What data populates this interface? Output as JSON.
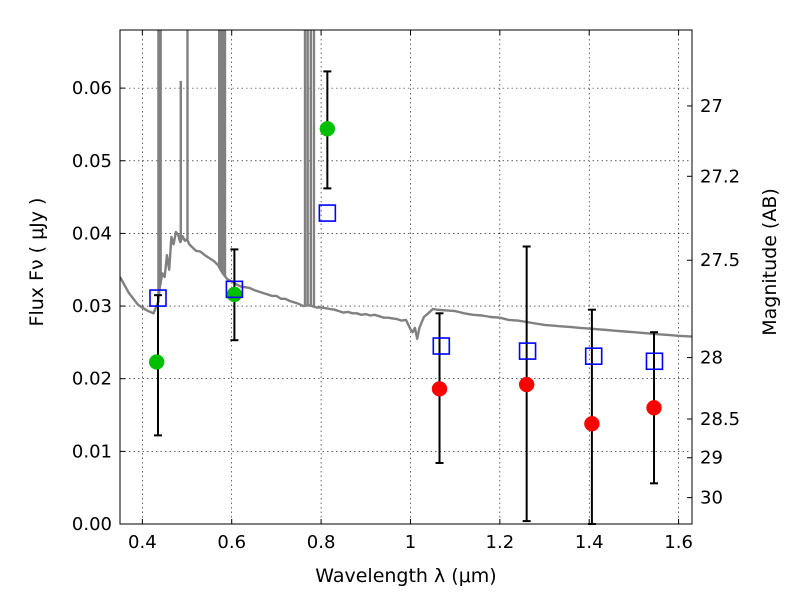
{
  "chart_data": {
    "type": "scatter",
    "title": "",
    "xlabel": "Wavelength  λ (μm)",
    "ylabel": "Flux  Fν  ( μJy )",
    "y2label": "Magnitude (AB)",
    "xlim": [
      0.35,
      1.63
    ],
    "ylim": [
      0.0,
      0.068
    ],
    "xticks": [
      "0.4",
      "0.6",
      "0.8",
      "1",
      "1.2",
      "1.4",
      "1.6"
    ],
    "xtick_values": [
      0.4,
      0.6,
      0.8,
      1.0,
      1.2,
      1.4,
      1.6
    ],
    "yticks": [
      "0.00",
      "0.01",
      "0.02",
      "0.03",
      "0.04",
      "0.05",
      "0.06"
    ],
    "ytick_values": [
      0.0,
      0.01,
      0.02,
      0.03,
      0.04,
      0.05,
      0.06
    ],
    "y2ticks": [
      "27",
      "27.2",
      "27.5",
      "28",
      "28.5",
      "29",
      "30"
    ],
    "y2tick_values": [
      27.0,
      27.2,
      27.5,
      28.0,
      28.5,
      29.0,
      30.0
    ],
    "grid": true,
    "series": [
      {
        "marker": "circle",
        "color": "#00bf00",
        "points": [
          {
            "x": 0.432,
            "y": 0.0223
          },
          {
            "x": 0.606,
            "y": 0.0316
          },
          {
            "x": 0.814,
            "y": 0.0544
          }
        ]
      },
      {
        "marker": "circle",
        "color": "#ff0000",
        "points": [
          {
            "x": 1.065,
            "y": 0.0186
          },
          {
            "x": 1.26,
            "y": 0.0192
          },
          {
            "x": 1.406,
            "y": 0.0138
          },
          {
            "x": 1.545,
            "y": 0.016
          }
        ]
      },
      {
        "marker": "open-square",
        "color": "#0000ff",
        "points": [
          {
            "x": 0.435,
            "y": 0.0311
          },
          {
            "x": 0.606,
            "y": 0.0323
          },
          {
            "x": 0.814,
            "y": 0.0428
          },
          {
            "x": 1.069,
            "y": 0.0245
          },
          {
            "x": 1.262,
            "y": 0.0238
          },
          {
            "x": 1.41,
            "y": 0.0231
          },
          {
            "x": 1.546,
            "y": 0.0224
          }
        ]
      },
      {
        "marker": "errorbar",
        "color": "#000000",
        "bars": [
          {
            "x": 0.435,
            "low": 0.0122,
            "high": 0.0315
          },
          {
            "x": 0.606,
            "low": 0.0253,
            "high": 0.0378
          },
          {
            "x": 0.814,
            "low": 0.0462,
            "high": 0.0623
          },
          {
            "x": 1.065,
            "low": 0.0084,
            "high": 0.029
          },
          {
            "x": 1.26,
            "low": 0.0004,
            "high": 0.0382
          },
          {
            "x": 1.406,
            "low": 0.0,
            "high": 0.0295
          },
          {
            "x": 1.545,
            "low": 0.0056,
            "high": 0.0264
          }
        ]
      },
      {
        "marker": "line",
        "color": "#808080",
        "points": [
          [
            0.35,
            0.034
          ],
          [
            0.37,
            0.0318
          ],
          [
            0.39,
            0.0302
          ],
          [
            0.41,
            0.0294
          ],
          [
            0.425,
            0.029
          ],
          [
            0.435,
            0.0305
          ],
          [
            0.44,
            0.033
          ],
          [
            0.445,
            0.0345
          ],
          [
            0.45,
            0.034
          ],
          [
            0.455,
            0.037
          ],
          [
            0.46,
            0.035
          ],
          [
            0.465,
            0.0395
          ],
          [
            0.47,
            0.0385
          ],
          [
            0.475,
            0.0402
          ],
          [
            0.48,
            0.0398
          ],
          [
            0.485,
            0.0388
          ],
          [
            0.49,
            0.0396
          ],
          [
            0.495,
            0.039
          ],
          [
            0.5,
            0.0392
          ],
          [
            0.505,
            0.0385
          ],
          [
            0.51,
            0.0382
          ],
          [
            0.52,
            0.0376
          ],
          [
            0.53,
            0.0375
          ],
          [
            0.54,
            0.037
          ],
          [
            0.55,
            0.0366
          ],
          [
            0.56,
            0.0362
          ],
          [
            0.57,
            0.0356
          ],
          [
            0.575,
            0.035
          ],
          [
            0.58,
            0.0345
          ],
          [
            0.59,
            0.0337
          ],
          [
            0.6,
            0.0334
          ],
          [
            0.61,
            0.033
          ],
          [
            0.62,
            0.0327
          ],
          [
            0.63,
            0.0326
          ],
          [
            0.64,
            0.0325
          ],
          [
            0.65,
            0.0322
          ],
          [
            0.66,
            0.032
          ],
          [
            0.67,
            0.0318
          ],
          [
            0.68,
            0.0316
          ],
          [
            0.69,
            0.0314
          ],
          [
            0.7,
            0.0314
          ],
          [
            0.71,
            0.031
          ],
          [
            0.72,
            0.031
          ],
          [
            0.73,
            0.0307
          ],
          [
            0.74,
            0.0305
          ],
          [
            0.75,
            0.0303
          ],
          [
            0.76,
            0.03
          ],
          [
            0.77,
            0.0301
          ],
          [
            0.78,
            0.03
          ],
          [
            0.79,
            0.0298
          ],
          [
            0.8,
            0.0298
          ],
          [
            0.81,
            0.0297
          ],
          [
            0.82,
            0.0296
          ],
          [
            0.83,
            0.0295
          ],
          [
            0.84,
            0.0293
          ],
          [
            0.85,
            0.0291
          ],
          [
            0.86,
            0.0292
          ],
          [
            0.87,
            0.029
          ],
          [
            0.88,
            0.029
          ],
          [
            0.89,
            0.0288
          ],
          [
            0.9,
            0.0289
          ],
          [
            0.91,
            0.0287
          ],
          [
            0.92,
            0.0288
          ],
          [
            0.93,
            0.0286
          ],
          [
            0.94,
            0.0284
          ],
          [
            0.95,
            0.0284
          ],
          [
            0.96,
            0.0283
          ],
          [
            0.97,
            0.0282
          ],
          [
            0.98,
            0.028
          ],
          [
            0.99,
            0.0281
          ],
          [
            1.0,
            0.0268
          ],
          [
            1.005,
            0.0264
          ],
          [
            1.01,
            0.027
          ],
          [
            1.015,
            0.0255
          ],
          [
            1.02,
            0.027
          ],
          [
            1.03,
            0.0285
          ],
          [
            1.04,
            0.029
          ],
          [
            1.05,
            0.0296
          ],
          [
            1.06,
            0.0295
          ],
          [
            1.08,
            0.0294
          ],
          [
            1.1,
            0.0293
          ],
          [
            1.12,
            0.029
          ],
          [
            1.14,
            0.0288
          ],
          [
            1.16,
            0.0287
          ],
          [
            1.18,
            0.0285
          ],
          [
            1.2,
            0.0284
          ],
          [
            1.22,
            0.0281
          ],
          [
            1.24,
            0.028
          ],
          [
            1.26,
            0.0278
          ],
          [
            1.28,
            0.0276
          ],
          [
            1.3,
            0.0274
          ],
          [
            1.32,
            0.0273
          ],
          [
            1.34,
            0.0272
          ],
          [
            1.36,
            0.0271
          ],
          [
            1.38,
            0.027
          ],
          [
            1.4,
            0.0269
          ],
          [
            1.42,
            0.0268
          ],
          [
            1.44,
            0.0267
          ],
          [
            1.46,
            0.0266
          ],
          [
            1.48,
            0.0265
          ],
          [
            1.5,
            0.0264
          ],
          [
            1.52,
            0.0263
          ],
          [
            1.54,
            0.0262
          ],
          [
            1.56,
            0.0261
          ],
          [
            1.58,
            0.026
          ],
          [
            1.6,
            0.0259
          ],
          [
            1.63,
            0.0258
          ]
        ],
        "spikes": [
          {
            "x": 0.436,
            "top": 0.068,
            "bottom": 0.0305
          },
          {
            "x": 0.441,
            "top": 0.068,
            "bottom": 0.033
          },
          {
            "x": 0.486,
            "top": 0.061,
            "bottom": 0.0388
          },
          {
            "x": 0.501,
            "top": 0.068,
            "bottom": 0.0392
          },
          {
            "x": 0.572,
            "top": 0.068,
            "bottom": 0.0356
          },
          {
            "x": 0.576,
            "top": 0.068,
            "bottom": 0.035
          },
          {
            "x": 0.58,
            "top": 0.068,
            "bottom": 0.0345
          },
          {
            "x": 0.585,
            "top": 0.068,
            "bottom": 0.034
          },
          {
            "x": 0.764,
            "top": 0.068,
            "bottom": 0.0301
          },
          {
            "x": 0.77,
            "top": 0.068,
            "bottom": 0.0301
          },
          {
            "x": 0.777,
            "top": 0.068,
            "bottom": 0.03
          },
          {
            "x": 0.784,
            "top": 0.068,
            "bottom": 0.0299
          }
        ]
      }
    ]
  }
}
